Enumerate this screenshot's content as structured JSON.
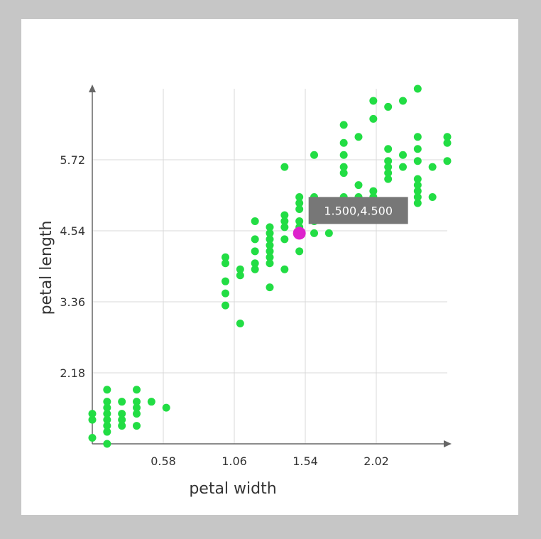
{
  "colors": {
    "page_background": "#c6c6c6",
    "panel_background": "#ffffff",
    "point": "#22dd44",
    "highlight_point": "#dd22cc",
    "tooltip_background": "#777777",
    "tooltip_text": "#ffffff",
    "grid": "#d8d8d8",
    "axis": "#666666"
  },
  "chart_data": {
    "type": "scatter",
    "xlabel": "petal width",
    "ylabel": "petal length",
    "xlim": [
      0.1,
      2.5
    ],
    "ylim": [
      1.0,
      6.9
    ],
    "x_ticks": [
      0.58,
      1.06,
      1.54,
      2.02
    ],
    "x_tick_labels": [
      "0.58",
      "1.06",
      "1.54",
      "2.02"
    ],
    "y_ticks": [
      2.18,
      3.36,
      4.54,
      5.72
    ],
    "y_tick_labels": [
      "2.18",
      "3.36",
      "4.54",
      "5.72"
    ],
    "grid": true,
    "series": [
      {
        "points": [
          [
            0.1,
            1.4
          ],
          [
            0.1,
            1.5
          ],
          [
            0.1,
            1.1
          ],
          [
            0.2,
            1.0
          ],
          [
            0.2,
            1.2
          ],
          [
            0.2,
            1.3
          ],
          [
            0.2,
            1.4
          ],
          [
            0.2,
            1.5
          ],
          [
            0.2,
            1.6
          ],
          [
            0.2,
            1.7
          ],
          [
            0.2,
            1.9
          ],
          [
            0.3,
            1.3
          ],
          [
            0.3,
            1.4
          ],
          [
            0.3,
            1.5
          ],
          [
            0.3,
            1.7
          ],
          [
            0.4,
            1.3
          ],
          [
            0.4,
            1.5
          ],
          [
            0.4,
            1.6
          ],
          [
            0.4,
            1.7
          ],
          [
            0.4,
            1.9
          ],
          [
            0.5,
            1.7
          ],
          [
            0.6,
            1.6
          ],
          [
            1.0,
            3.3
          ],
          [
            1.0,
            3.5
          ],
          [
            1.0,
            3.7
          ],
          [
            1.0,
            4.0
          ],
          [
            1.0,
            4.1
          ],
          [
            1.1,
            3.0
          ],
          [
            1.1,
            3.8
          ],
          [
            1.1,
            3.9
          ],
          [
            1.2,
            3.9
          ],
          [
            1.2,
            4.0
          ],
          [
            1.2,
            4.2
          ],
          [
            1.2,
            4.4
          ],
          [
            1.2,
            4.7
          ],
          [
            1.3,
            3.6
          ],
          [
            1.3,
            4.0
          ],
          [
            1.3,
            4.1
          ],
          [
            1.3,
            4.2
          ],
          [
            1.3,
            4.3
          ],
          [
            1.3,
            4.4
          ],
          [
            1.3,
            4.5
          ],
          [
            1.3,
            4.6
          ],
          [
            1.4,
            3.9
          ],
          [
            1.4,
            4.4
          ],
          [
            1.4,
            4.6
          ],
          [
            1.4,
            4.7
          ],
          [
            1.4,
            4.8
          ],
          [
            1.4,
            5.6
          ],
          [
            1.5,
            4.2
          ],
          [
            1.5,
            4.6
          ],
          [
            1.5,
            4.7
          ],
          [
            1.5,
            4.9
          ],
          [
            1.5,
            5.0
          ],
          [
            1.5,
            5.1
          ],
          [
            1.6,
            4.5
          ],
          [
            1.6,
            4.7
          ],
          [
            1.6,
            5.1
          ],
          [
            1.6,
            5.8
          ],
          [
            1.7,
            4.5
          ],
          [
            1.7,
            5.0
          ],
          [
            1.8,
            4.8
          ],
          [
            1.8,
            5.1
          ],
          [
            1.8,
            5.5
          ],
          [
            1.8,
            5.6
          ],
          [
            1.8,
            5.8
          ],
          [
            1.8,
            6.0
          ],
          [
            1.8,
            6.3
          ],
          [
            1.9,
            5.0
          ],
          [
            1.9,
            5.1
          ],
          [
            1.9,
            5.3
          ],
          [
            1.9,
            6.1
          ],
          [
            2.0,
            5.0
          ],
          [
            2.0,
            5.1
          ],
          [
            2.0,
            5.2
          ],
          [
            2.0,
            6.4
          ],
          [
            2.0,
            6.7
          ],
          [
            2.1,
            5.4
          ],
          [
            2.1,
            5.5
          ],
          [
            2.1,
            5.6
          ],
          [
            2.1,
            5.7
          ],
          [
            2.1,
            5.9
          ],
          [
            2.1,
            6.6
          ],
          [
            2.2,
            5.6
          ],
          [
            2.2,
            5.8
          ],
          [
            2.2,
            6.7
          ],
          [
            2.3,
            5.0
          ],
          [
            2.3,
            5.1
          ],
          [
            2.3,
            5.2
          ],
          [
            2.3,
            5.3
          ],
          [
            2.3,
            5.4
          ],
          [
            2.3,
            5.7
          ],
          [
            2.3,
            5.9
          ],
          [
            2.3,
            6.1
          ],
          [
            2.3,
            6.9
          ],
          [
            2.4,
            5.1
          ],
          [
            2.4,
            5.6
          ],
          [
            2.5,
            5.7
          ],
          [
            2.5,
            6.0
          ],
          [
            2.5,
            6.1
          ]
        ]
      }
    ],
    "highlight": {
      "x": 1.5,
      "y": 4.5,
      "label": "1.500,4.500"
    }
  }
}
